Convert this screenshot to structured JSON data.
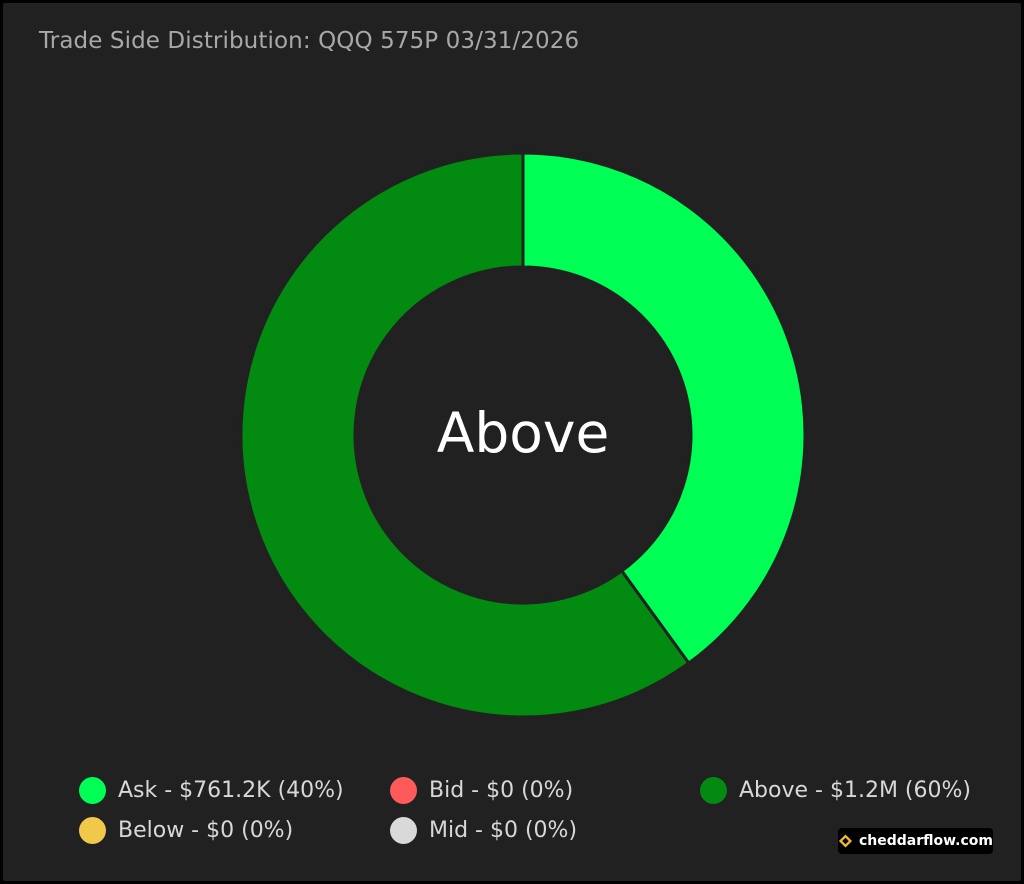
{
  "chart_data": {
    "type": "pie",
    "title": "Trade Side Distribution: QQQ 575P 03/31/2026",
    "center_label": "Above",
    "slices": [
      {
        "name": "Ask",
        "value": 761.2,
        "percent": 40,
        "color": "#00ff55"
      },
      {
        "name": "Above",
        "value": 1200,
        "percent": 60,
        "color": "#038a10"
      }
    ],
    "legend": [
      {
        "label": "Ask - $761.2K (40%)",
        "color": "#00ff55"
      },
      {
        "label": "Bid - $0 (0%)",
        "color": "#ff5a5a"
      },
      {
        "label": "Above - $1.2M (60%)",
        "color": "#038a10"
      },
      {
        "label": "Below - $0 (0%)",
        "color": "#f0c84a"
      },
      {
        "label": "Mid - $0 (0%)",
        "color": "#d9d9d9"
      }
    ]
  },
  "brand": {
    "label": "cheddarflow.com",
    "icon": "cheddarflow-logo-icon",
    "color": "#f5b731"
  }
}
